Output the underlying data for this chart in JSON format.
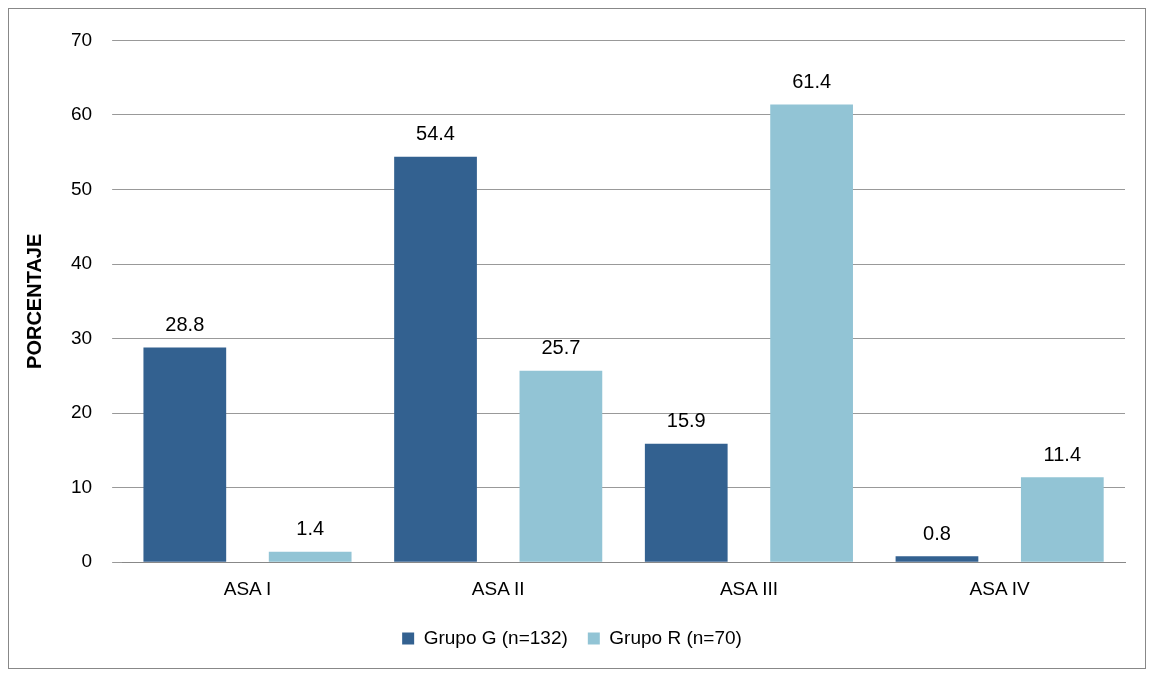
{
  "chart_data": {
    "type": "bar",
    "ylabel": "PORCENTAJE",
    "categories": [
      "ASA I",
      "ASA II",
      "ASA III",
      "ASA IV"
    ],
    "series": [
      {
        "name": "Grupo G (n=132)",
        "color": "#336190",
        "values": [
          28.8,
          54.4,
          15.9,
          0.8
        ]
      },
      {
        "name": "Grupo R (n=70)",
        "color": "#92c4d5",
        "values": [
          1.4,
          25.7,
          61.4,
          11.4
        ]
      }
    ],
    "ylim": [
      0,
      70
    ],
    "yticks": [
      0,
      10,
      20,
      30,
      40,
      50,
      60,
      70
    ],
    "grid": "y",
    "legend": "bottom",
    "data_labels": true
  }
}
